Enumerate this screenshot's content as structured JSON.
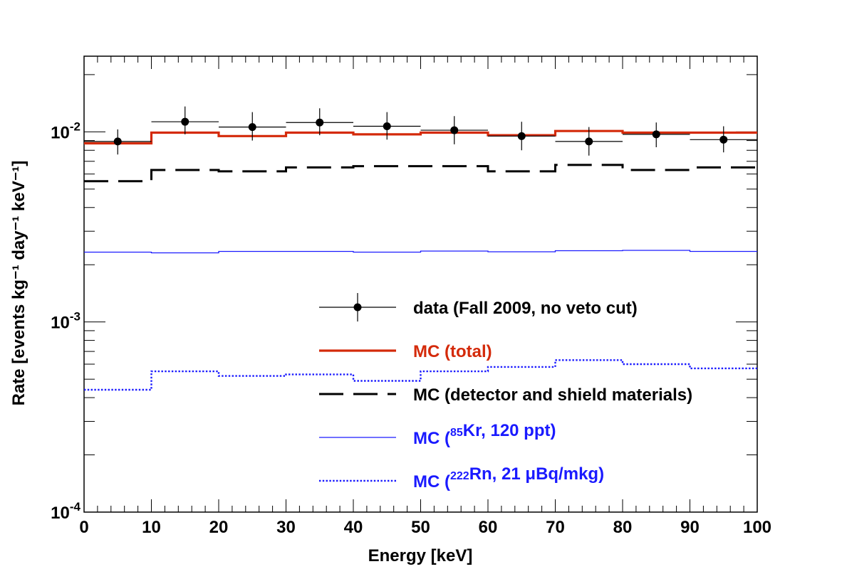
{
  "chart_data": {
    "type": "line",
    "xlabel": "Energy [keV]",
    "ylabel": "Rate [events kg⁻¹ day⁻¹ keV⁻¹]",
    "xlim": [
      0,
      100
    ],
    "ylim": [
      0.0001,
      0.025
    ],
    "yscale": "log",
    "grid": false,
    "legend_position": "center-right",
    "x_tick_labels": [
      "0",
      "10",
      "20",
      "30",
      "40",
      "50",
      "60",
      "70",
      "80",
      "90",
      "100"
    ],
    "y_tick_labels": [
      {
        "base": "10",
        "exp": "-4"
      },
      {
        "base": "10",
        "exp": "-3"
      },
      {
        "base": "10",
        "exp": "-2"
      }
    ],
    "bin_edges": [
      0,
      10,
      20,
      30,
      40,
      50,
      60,
      70,
      80,
      90,
      100
    ],
    "series": [
      {
        "name": "MC (total)",
        "kind": "histogram",
        "color": "#d42a0a",
        "style": "solid-thick",
        "values": [
          0.0087,
          0.0099,
          0.0095,
          0.0099,
          0.0097,
          0.0099,
          0.0096,
          0.0101,
          0.0099,
          0.0099
        ]
      },
      {
        "name": "MC (detector and shield materials)",
        "kind": "histogram",
        "color": "#000000",
        "style": "long-dash",
        "values": [
          0.0055,
          0.0063,
          0.0062,
          0.0065,
          0.0066,
          0.0066,
          0.0062,
          0.0067,
          0.0063,
          0.0065
        ]
      },
      {
        "name": "MC (⁸⁵Kr, 120 ppt)",
        "kind": "histogram",
        "color": "#1a1aff",
        "style": "solid-thin",
        "values": [
          0.00233,
          0.00231,
          0.00235,
          0.00235,
          0.00233,
          0.00236,
          0.00234,
          0.00237,
          0.00238,
          0.00235
        ]
      },
      {
        "name": "MC (²²²Rn, 21 μBq/mkg)",
        "kind": "histogram",
        "color": "#1a1aff",
        "style": "dotted",
        "values": [
          0.00044,
          0.00055,
          0.00052,
          0.00053,
          0.00049,
          0.00055,
          0.00058,
          0.00063,
          0.0006,
          0.00057
        ]
      },
      {
        "name": "data (Fall 2009, no veto cut)",
        "kind": "errorbar",
        "color": "#000000",
        "points": [
          {
            "x": 5,
            "y": 0.0089,
            "ylo": 0.0076,
            "yhi": 0.0103,
            "xlo": 0,
            "xhi": 10
          },
          {
            "x": 15,
            "y": 0.0113,
            "ylo": 0.0097,
            "yhi": 0.0136,
            "xlo": 10,
            "xhi": 20
          },
          {
            "x": 25,
            "y": 0.0106,
            "ylo": 0.009,
            "yhi": 0.0127,
            "xlo": 20,
            "xhi": 30
          },
          {
            "x": 35,
            "y": 0.0112,
            "ylo": 0.0096,
            "yhi": 0.0133,
            "xlo": 30,
            "xhi": 40
          },
          {
            "x": 45,
            "y": 0.0107,
            "ylo": 0.0091,
            "yhi": 0.0127,
            "xlo": 40,
            "xhi": 50
          },
          {
            "x": 55,
            "y": 0.0102,
            "ylo": 0.0086,
            "yhi": 0.0121,
            "xlo": 50,
            "xhi": 60
          },
          {
            "x": 65,
            "y": 0.0095,
            "ylo": 0.008,
            "yhi": 0.0113,
            "xlo": 60,
            "xhi": 70
          },
          {
            "x": 75,
            "y": 0.0089,
            "ylo": 0.0075,
            "yhi": 0.0106,
            "xlo": 70,
            "xhi": 80
          },
          {
            "x": 85,
            "y": 0.0097,
            "ylo": 0.0083,
            "yhi": 0.0112,
            "xlo": 80,
            "xhi": 90
          },
          {
            "x": 95,
            "y": 0.0091,
            "ylo": 0.0078,
            "yhi": 0.0107,
            "xlo": 90,
            "xhi": 100
          }
        ]
      }
    ],
    "legend": [
      {
        "parts": [
          {
            "t": "data (Fall 2009, no veto cut)"
          }
        ],
        "color": "#000000",
        "marker": "errorbar"
      },
      {
        "parts": [
          {
            "t": "MC (total)"
          }
        ],
        "color": "#d42a0a",
        "marker": "solid-thick"
      },
      {
        "parts": [
          {
            "t": "MC (detector and shield materials)"
          }
        ],
        "color": "#000000",
        "marker": "long-dash"
      },
      {
        "parts": [
          {
            "t": "MC ("
          },
          {
            "t": "85",
            "sup": true
          },
          {
            "t": "Kr, 120 ppt)"
          }
        ],
        "color": "#1a1aff",
        "marker": "solid-thin"
      },
      {
        "parts": [
          {
            "t": "MC ("
          },
          {
            "t": "222",
            "sup": true
          },
          {
            "t": "Rn, 21 μBq/mkg)"
          }
        ],
        "color": "#1a1aff",
        "marker": "dotted"
      }
    ]
  }
}
